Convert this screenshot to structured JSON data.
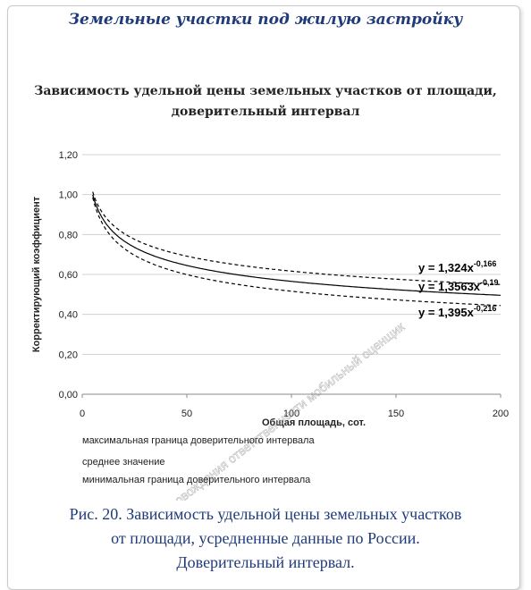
{
  "header": {
    "title": "Земельные участки под жилую застройку"
  },
  "chart_title": {
    "line1": "Зависимость удельной цены земельных участков от площади,",
    "line2": "доверительный интервал"
  },
  "chart_data": {
    "type": "line",
    "xlabel": "Общая площадь, сот.",
    "ylabel": "Корректирующий коэффициент",
    "xlim": [
      0,
      200
    ],
    "ylim": [
      0,
      1.2
    ],
    "x_ticks": [
      "0",
      "50",
      "100",
      "150",
      "200"
    ],
    "y_ticks": [
      "0,00",
      "0,20",
      "0,40",
      "0,60",
      "0,80",
      "1,00",
      "1,20"
    ],
    "x_range": [
      5,
      200
    ],
    "grid": "horizontal",
    "series": [
      {
        "name": "максимальная граница доверительного интервала",
        "a": 1.324,
        "b": -0.166,
        "style": "dashed",
        "equation": {
          "base": "y = 1,324x",
          "exp": "-0,166"
        }
      },
      {
        "name": "среднее значение",
        "a": 1.3563,
        "b": -0.19,
        "style": "solid",
        "equation": {
          "base": "y = 1,3563x",
          "exp": "-0,19"
        }
      },
      {
        "name": "минимальная граница доверительного интервала",
        "a": 1.395,
        "b": -0.216,
        "style": "dashed",
        "equation": {
          "base": "y = 1,395x",
          "exp": "-0,216"
        }
      }
    ]
  },
  "caption": {
    "line1": "Рис. 20. Зависимость удельной цены земельных участков",
    "line2": "от площади, усредненные данные по России.",
    "line3": "Доверительный интервал."
  },
  "watermark": "объекты сопровождения ответственности мобильный оценщик",
  "colors": {
    "title_blue": "#1f3b7a",
    "line": "#000000",
    "grid": "#d0d0d0"
  }
}
